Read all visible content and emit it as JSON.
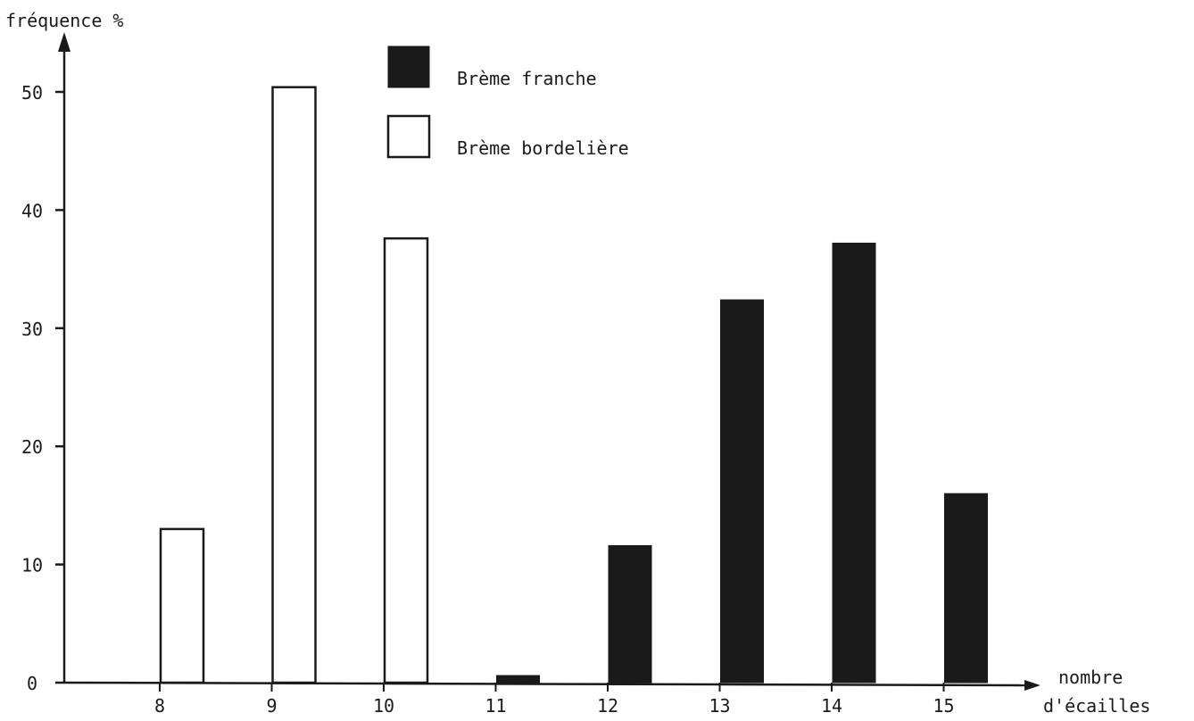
{
  "chart_data": {
    "type": "bar",
    "ylabel": "fréquence %",
    "xlabel": [
      "nombre",
      "d'écailles"
    ],
    "categories": [
      "8",
      "9",
      "10",
      "11",
      "12",
      "13",
      "14",
      "15"
    ],
    "yticks": [
      "0",
      "10",
      "20",
      "30",
      "40",
      "50"
    ],
    "ylim": [
      0,
      50
    ],
    "grid": false,
    "legend_position": "top-center",
    "series": [
      {
        "name": "Brème franche",
        "fill": "#1a1a1a",
        "values": [
          0,
          0,
          0,
          0.6,
          11.6,
          32.4,
          37.2,
          16
        ]
      },
      {
        "name": "Brème bordelière",
        "fill": "#ffffff",
        "values": [
          13,
          50.4,
          37.6,
          0,
          0,
          0,
          0,
          0
        ]
      }
    ]
  }
}
